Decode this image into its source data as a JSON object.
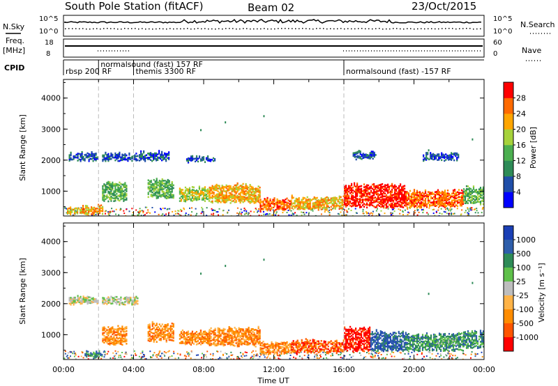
{
  "header": {
    "station": "South Pole Station (fitACF)",
    "beam": "Beam 02",
    "date": "23/Oct/2015"
  },
  "sky_panel": {
    "left_label": "N.Sky",
    "right_label": "N.Search",
    "ticks_left": [
      "10^5",
      "10^0"
    ],
    "ticks_right": [
      "10^5",
      "10^0"
    ]
  },
  "freq_panel": {
    "left_label_1": "Freq.",
    "left_label_2": "[MHz]",
    "right_label": "Nave",
    "ticks_left": [
      "18",
      "8"
    ],
    "ticks_right": [
      "60",
      "0"
    ]
  },
  "cpid": {
    "label": "CPID",
    "entries": [
      {
        "text": "rbsp 200 RF",
        "start": 0.0,
        "end": 2.0
      },
      {
        "text": "normalsound (fast) 157 RF",
        "start": 2.0,
        "end": 16.0
      },
      {
        "text": "themis 3300 RF",
        "start": 4.0,
        "end": 16.0
      },
      {
        "text": "normalsound (fast) -157 RF",
        "start": 16.0,
        "end": 24.0
      }
    ]
  },
  "chart_data": [
    {
      "type": "heatmap",
      "title": "",
      "ylabel": "Slant Range [km]",
      "xlabel": "",
      "xlim": [
        0,
        24
      ],
      "ylim": [
        200,
        4600
      ],
      "yticks": [
        1000,
        2000,
        3000,
        4000
      ],
      "colorbar": {
        "label": "Power [dB]",
        "ticks": [
          "4",
          "8",
          "12",
          "16",
          "20",
          "24",
          "28"
        ],
        "colors": [
          "#0000ff",
          "#1f4ea8",
          "#2e8b57",
          "#4caf50",
          "#a6d23b",
          "#ffa500",
          "#ff6a00",
          "#ff0000"
        ]
      },
      "regions": [
        {
          "t0": 0.3,
          "t1": 1.9,
          "r0": 1950,
          "r1": 2250,
          "level": 1
        },
        {
          "t0": 2.2,
          "t1": 4.2,
          "r0": 1950,
          "r1": 2250,
          "level": 1
        },
        {
          "t0": 4.3,
          "t1": 6.0,
          "r0": 1950,
          "r1": 2300,
          "level": 1
        },
        {
          "t0": 7.0,
          "t1": 8.6,
          "r0": 1900,
          "r1": 2150,
          "level": 1
        },
        {
          "t0": 16.5,
          "t1": 17.8,
          "r0": 2000,
          "r1": 2300,
          "level": 1
        },
        {
          "t0": 20.5,
          "t1": 22.5,
          "r0": 1950,
          "r1": 2250,
          "level": 1
        },
        {
          "t0": 2.2,
          "t1": 3.6,
          "r0": 650,
          "r1": 1300,
          "level": 3
        },
        {
          "t0": 4.8,
          "t1": 6.3,
          "r0": 750,
          "r1": 1400,
          "level": 3
        },
        {
          "t0": 6.6,
          "t1": 8.3,
          "r0": 650,
          "r1": 1150,
          "level": 4
        },
        {
          "t0": 8.3,
          "t1": 11.2,
          "r0": 600,
          "r1": 1250,
          "level": 5
        },
        {
          "t0": 11.2,
          "t1": 13.0,
          "r0": 350,
          "r1": 800,
          "level": 6
        },
        {
          "t0": 13.0,
          "t1": 16.0,
          "r0": 380,
          "r1": 850,
          "level": 5
        },
        {
          "t0": 16.0,
          "t1": 19.5,
          "r0": 450,
          "r1": 1250,
          "level": 7
        },
        {
          "t0": 19.5,
          "t1": 22.8,
          "r0": 450,
          "r1": 1050,
          "level": 6
        },
        {
          "t0": 22.8,
          "t1": 24.0,
          "r0": 550,
          "r1": 1150,
          "level": 3
        },
        {
          "t0": 0.2,
          "t1": 2.2,
          "r0": 230,
          "r1": 550,
          "level": 5
        }
      ]
    },
    {
      "type": "heatmap",
      "title": "",
      "ylabel": "Slant Range [km]",
      "xlabel": "Time UT",
      "xlim": [
        0,
        24
      ],
      "ylim": [
        200,
        4600
      ],
      "xticks": [
        "00:00",
        "04:00",
        "08:00",
        "12:00",
        "16:00",
        "20:00",
        "00:00"
      ],
      "yticks": [
        1000,
        2000,
        3000,
        4000
      ],
      "colorbar": {
        "label": "Velocity [m s⁻¹]",
        "ticks": [
          "1000",
          "500",
          "100",
          "25",
          "-25",
          "-100",
          "-500",
          "-1000"
        ],
        "colors": [
          "#1a3fb5",
          "#2e5eaa",
          "#2e8b57",
          "#5fc04a",
          "#bdbdbd",
          "#ffb347",
          "#ff8c00",
          "#ff5500",
          "#ff0000"
        ]
      },
      "regions": [
        {
          "t0": 0.3,
          "t1": 1.9,
          "r0": 1950,
          "r1": 2250,
          "level": 4
        },
        {
          "t0": 2.2,
          "t1": 4.2,
          "r0": 1950,
          "r1": 2250,
          "level": 4
        },
        {
          "t0": 2.2,
          "t1": 3.6,
          "r0": 650,
          "r1": 1300,
          "level": 6
        },
        {
          "t0": 4.8,
          "t1": 6.3,
          "r0": 750,
          "r1": 1400,
          "level": 6
        },
        {
          "t0": 6.6,
          "t1": 8.3,
          "r0": 650,
          "r1": 1150,
          "level": 6
        },
        {
          "t0": 8.3,
          "t1": 11.2,
          "r0": 600,
          "r1": 1250,
          "level": 6
        },
        {
          "t0": 11.2,
          "t1": 13.0,
          "r0": 350,
          "r1": 800,
          "level": 6
        },
        {
          "t0": 13.0,
          "t1": 16.0,
          "r0": 380,
          "r1": 850,
          "level": 7
        },
        {
          "t0": 16.0,
          "t1": 17.5,
          "r0": 450,
          "r1": 1250,
          "level": 8
        },
        {
          "t0": 17.5,
          "t1": 19.5,
          "r0": 450,
          "r1": 1150,
          "level": 1
        },
        {
          "t0": 19.5,
          "t1": 22.8,
          "r0": 450,
          "r1": 1050,
          "level": 2
        },
        {
          "t0": 21.3,
          "t1": 22.5,
          "r0": 650,
          "r1": 900,
          "level": 3
        },
        {
          "t0": 22.8,
          "t1": 24.0,
          "r0": 550,
          "r1": 1150,
          "level": 2
        },
        {
          "t0": 1.2,
          "t1": 2.2,
          "r0": 230,
          "r1": 500,
          "level": 2
        }
      ]
    }
  ]
}
